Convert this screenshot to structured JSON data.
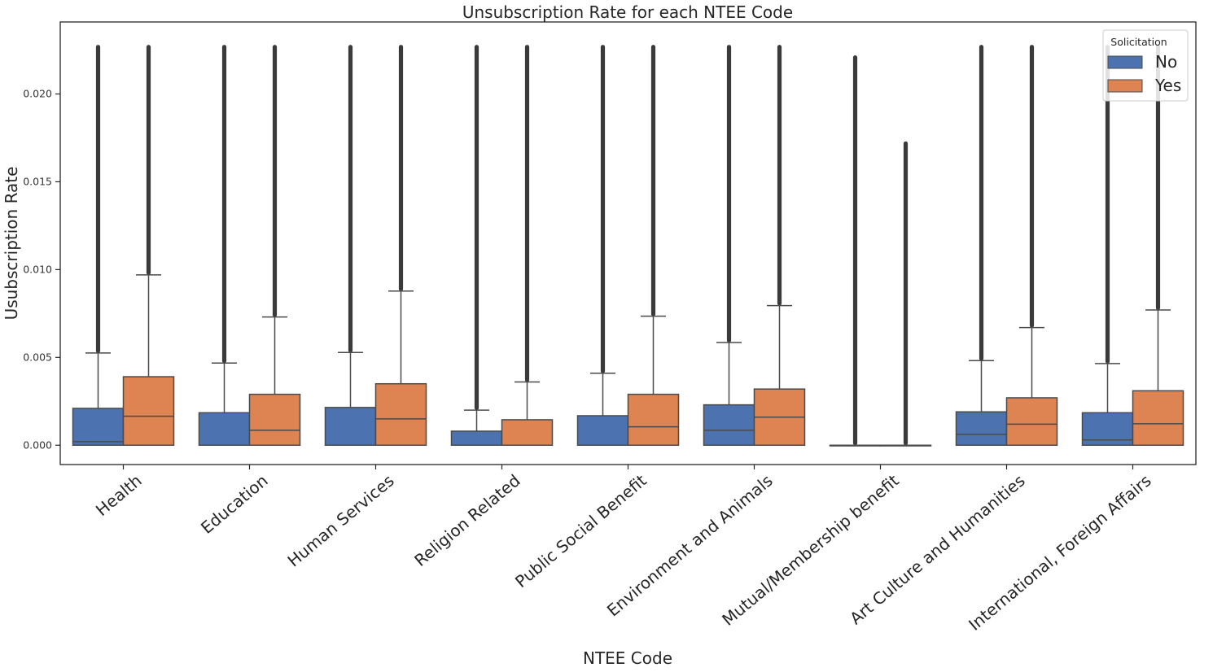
{
  "chart_data": {
    "type": "box",
    "title": "Unsubscription Rate for each NTEE Code",
    "xlabel": "NTEE Code",
    "ylabel": "Usubscription Rate",
    "ylim": [
      -0.0011,
      0.0241
    ],
    "y_ticks": [
      0.0,
      0.005,
      0.01,
      0.015,
      0.02
    ],
    "y_tick_labels": [
      "0.000",
      "0.005",
      "0.010",
      "0.015",
      "0.020"
    ],
    "categories": [
      "Health",
      "Education",
      "Human Services",
      "Religion Related",
      "Public Social Benefit",
      "Environment and Animals",
      "Mutual/Membership benefit",
      "Art Culture and Humanities",
      "International, Foreign Affairs"
    ],
    "legend": {
      "title": "Solicitation",
      "position": "top-right"
    },
    "grid": false,
    "series": [
      {
        "name": "No",
        "color": "#4c72b0",
        "boxes": [
          {
            "q1": 0.0,
            "median": 0.0002,
            "q3": 0.0021,
            "whisker_low": 0.0,
            "whisker_high": 0.00525,
            "outliers_max": 0.0228
          },
          {
            "q1": 0.0,
            "median": 0.0,
            "q3": 0.00185,
            "whisker_low": 0.0,
            "whisker_high": 0.00468,
            "outliers_max": 0.0228
          },
          {
            "q1": 0.0,
            "median": 0.0,
            "q3": 0.00215,
            "whisker_low": 0.0,
            "whisker_high": 0.00528,
            "outliers_max": 0.0228
          },
          {
            "q1": 0.0,
            "median": 0.0,
            "q3": 0.0008,
            "whisker_low": 0.0,
            "whisker_high": 0.002,
            "outliers_max": 0.0228
          },
          {
            "q1": 0.0,
            "median": 0.0,
            "q3": 0.00168,
            "whisker_low": 0.0,
            "whisker_high": 0.0041,
            "outliers_max": 0.0228
          },
          {
            "q1": 0.0,
            "median": 0.00085,
            "q3": 0.0023,
            "whisker_low": 0.0,
            "whisker_high": 0.00585,
            "outliers_max": 0.0228
          },
          {
            "q1": 0.0,
            "median": 0.0,
            "q3": 0.0,
            "whisker_low": 0.0,
            "whisker_high": 0.0,
            "outliers_max": 0.0222
          },
          {
            "q1": 0.0,
            "median": 0.00062,
            "q3": 0.0019,
            "whisker_low": 0.0,
            "whisker_high": 0.00482,
            "outliers_max": 0.0228
          },
          {
            "q1": 0.0,
            "median": 0.0003,
            "q3": 0.00185,
            "whisker_low": 0.0,
            "whisker_high": 0.00465,
            "outliers_max": 0.0228
          }
        ]
      },
      {
        "name": "Yes",
        "color": "#dd8452",
        "boxes": [
          {
            "q1": 0.0,
            "median": 0.00165,
            "q3": 0.0039,
            "whisker_low": 0.0,
            "whisker_high": 0.0097,
            "outliers_max": 0.0228
          },
          {
            "q1": 0.0,
            "median": 0.00085,
            "q3": 0.0029,
            "whisker_low": 0.0,
            "whisker_high": 0.0073,
            "outliers_max": 0.0228
          },
          {
            "q1": 0.0,
            "median": 0.0015,
            "q3": 0.0035,
            "whisker_low": 0.0,
            "whisker_high": 0.00878,
            "outliers_max": 0.0228
          },
          {
            "q1": 0.0,
            "median": 0.0,
            "q3": 0.00145,
            "whisker_low": 0.0,
            "whisker_high": 0.0036,
            "outliers_max": 0.0228
          },
          {
            "q1": 0.0,
            "median": 0.00105,
            "q3": 0.0029,
            "whisker_low": 0.0,
            "whisker_high": 0.00735,
            "outliers_max": 0.0228
          },
          {
            "q1": 0.0,
            "median": 0.0016,
            "q3": 0.0032,
            "whisker_low": 0.0,
            "whisker_high": 0.00795,
            "outliers_max": 0.0228
          },
          {
            "q1": 0.0,
            "median": 0.0,
            "q3": 0.0,
            "whisker_low": 0.0,
            "whisker_high": 0.0,
            "outliers_max": 0.0173
          },
          {
            "q1": 0.0,
            "median": 0.0012,
            "q3": 0.0027,
            "whisker_low": 0.0,
            "whisker_high": 0.0067,
            "outliers_max": 0.0228
          },
          {
            "q1": 0.0,
            "median": 0.00122,
            "q3": 0.0031,
            "whisker_low": 0.0,
            "whisker_high": 0.0077,
            "outliers_max": 0.0228
          }
        ]
      }
    ]
  }
}
